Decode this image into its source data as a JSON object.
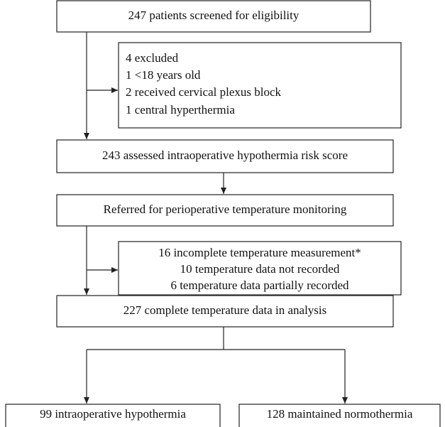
{
  "nodes": [
    {
      "lines": [
        "247 patients screened for eligibility"
      ]
    },
    {
      "lines": [
        "4 excluded",
        "1 <18 years old",
        "2 received cervical plexus block",
        "1 central hyperthermia"
      ]
    },
    {
      "lines": [
        "243 assessed intraoperative hypothermia risk score"
      ]
    },
    {
      "lines": [
        "Referred for perioperative temperature monitoring"
      ]
    },
    {
      "lines": [
        "16 incomplete temperature measurement*",
        "10 temperature data not recorded",
        "6 temperature data partially recorded"
      ]
    },
    {
      "lines": [
        "227 complete temperature data in analysis"
      ]
    },
    {
      "lines": [
        "99 intraoperative hypothermia"
      ]
    },
    {
      "lines": [
        "128 maintained normothermia"
      ]
    }
  ]
}
